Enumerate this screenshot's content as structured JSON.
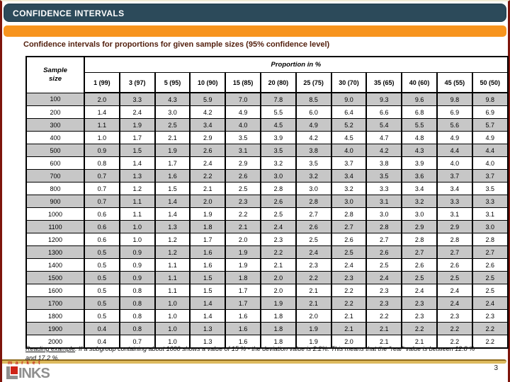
{
  "page": {
    "header_title": "CONFIDENCE INTERVALS",
    "slide_title": "Confidence intervals for proportions for given sample sizes (95% confidence level)",
    "page_number": "3",
    "footer_lead": "Reading example",
    "footer_rest": ": If a subgroup containing about 1000 shows a value of 15 % - the deviation value is 2.2%. This means that the \"real\" value is between 12.8 % and 17.2 %."
  },
  "logo": {
    "top_text": "market",
    "bottom_text": "INKS"
  },
  "colors": {
    "title_bar_bg": "#2C4A5A",
    "accent_orange": "#F7941E",
    "slide_title_text": "#53200E",
    "page_border_maroon": "#7E150C",
    "row_shade_gray": "#C7C7C7",
    "gold_divider": "#DDBA5F",
    "logo_red": "#CE2418",
    "logo_gray": "#8F8F8F"
  },
  "table": {
    "corner_header": "Sample size",
    "group_header": "Proportion in %",
    "columns": [
      "1 (99)",
      "3 (97)",
      "5 (95)",
      "10 (90)",
      "15 (85)",
      "20 (80)",
      "25 (75)",
      "30 (70)",
      "35 (65)",
      "40 (60)",
      "45 (55)",
      "50 (50)"
    ],
    "rows": [
      {
        "size": "100",
        "values": [
          "2.0",
          "3.3",
          "4.3",
          "5.9",
          "7.0",
          "7.8",
          "8.5",
          "9.0",
          "9.3",
          "9.6",
          "9.8",
          "9.8"
        ]
      },
      {
        "size": "200",
        "values": [
          "1.4",
          "2.4",
          "3.0",
          "4.2",
          "4.9",
          "5.5",
          "6.0",
          "6.4",
          "6.6",
          "6.8",
          "6.9",
          "6.9"
        ]
      },
      {
        "size": "300",
        "values": [
          "1.1",
          "1.9",
          "2.5",
          "3.4",
          "4.0",
          "4.5",
          "4.9",
          "5.2",
          "5.4",
          "5.5",
          "5.6",
          "5.7"
        ]
      },
      {
        "size": "400",
        "values": [
          "1.0",
          "1.7",
          "2.1",
          "2.9",
          "3.5",
          "3.9",
          "4.2",
          "4.5",
          "4.7",
          "4.8",
          "4.9",
          "4.9"
        ]
      },
      {
        "size": "500",
        "values": [
          "0.9",
          "1.5",
          "1.9",
          "2.6",
          "3.1",
          "3.5",
          "3.8",
          "4.0",
          "4.2",
          "4.3",
          "4.4",
          "4.4"
        ]
      },
      {
        "size": "600",
        "values": [
          "0.8",
          "1.4",
          "1.7",
          "2.4",
          "2.9",
          "3.2",
          "3.5",
          "3.7",
          "3.8",
          "3.9",
          "4.0",
          "4.0"
        ]
      },
      {
        "size": "700",
        "values": [
          "0.7",
          "1.3",
          "1.6",
          "2.2",
          "2.6",
          "3.0",
          "3.2",
          "3.4",
          "3.5",
          "3.6",
          "3.7",
          "3.7"
        ]
      },
      {
        "size": "800",
        "values": [
          "0.7",
          "1.2",
          "1.5",
          "2.1",
          "2.5",
          "2.8",
          "3.0",
          "3.2",
          "3.3",
          "3.4",
          "3.4",
          "3.5"
        ]
      },
      {
        "size": "900",
        "values": [
          "0.7",
          "1.1",
          "1.4",
          "2.0",
          "2.3",
          "2.6",
          "2.8",
          "3.0",
          "3.1",
          "3.2",
          "3.3",
          "3.3"
        ]
      },
      {
        "size": "1000",
        "values": [
          "0.6",
          "1.1",
          "1.4",
          "1.9",
          "2.2",
          "2.5",
          "2.7",
          "2.8",
          "3.0",
          "3.0",
          "3.1",
          "3.1"
        ]
      },
      {
        "size": "1100",
        "values": [
          "0.6",
          "1.0",
          "1.3",
          "1.8",
          "2.1",
          "2.4",
          "2.6",
          "2.7",
          "2.8",
          "2.9",
          "2.9",
          "3.0"
        ]
      },
      {
        "size": "1200",
        "values": [
          "0.6",
          "1.0",
          "1.2",
          "1.7",
          "2.0",
          "2.3",
          "2.5",
          "2.6",
          "2.7",
          "2.8",
          "2.8",
          "2.8"
        ]
      },
      {
        "size": "1300",
        "values": [
          "0.5",
          "0.9",
          "1.2",
          "1.6",
          "1.9",
          "2.2",
          "2.4",
          "2.5",
          "2.6",
          "2.7",
          "2.7",
          "2.7"
        ]
      },
      {
        "size": "1400",
        "values": [
          "0.5",
          "0.9",
          "1.1",
          "1.6",
          "1.9",
          "2.1",
          "2.3",
          "2.4",
          "2.5",
          "2.6",
          "2.6",
          "2.6"
        ]
      },
      {
        "size": "1500",
        "values": [
          "0.5",
          "0.9",
          "1.1",
          "1.5",
          "1.8",
          "2.0",
          "2.2",
          "2.3",
          "2.4",
          "2.5",
          "2.5",
          "2.5"
        ]
      },
      {
        "size": "1600",
        "values": [
          "0.5",
          "0.8",
          "1.1",
          "1.5",
          "1.7",
          "2.0",
          "2.1",
          "2.2",
          "2.3",
          "2.4",
          "2.4",
          "2.5"
        ]
      },
      {
        "size": "1700",
        "values": [
          "0.5",
          "0.8",
          "1.0",
          "1.4",
          "1.7",
          "1.9",
          "2.1",
          "2.2",
          "2.3",
          "2.3",
          "2.4",
          "2.4"
        ]
      },
      {
        "size": "1800",
        "values": [
          "0.5",
          "0.8",
          "1.0",
          "1.4",
          "1.6",
          "1.8",
          "2.0",
          "2.1",
          "2.2",
          "2.3",
          "2.3",
          "2.3"
        ]
      },
      {
        "size": "1900",
        "values": [
          "0.4",
          "0.8",
          "1.0",
          "1.3",
          "1.6",
          "1.8",
          "1.9",
          "2.1",
          "2.1",
          "2.2",
          "2.2",
          "2.2"
        ]
      },
      {
        "size": "2000",
        "values": [
          "0.4",
          "0.7",
          "1.0",
          "1.3",
          "1.6",
          "1.8",
          "1.9",
          "2.0",
          "2.1",
          "2.1",
          "2.2",
          "2.2"
        ]
      }
    ]
  }
}
